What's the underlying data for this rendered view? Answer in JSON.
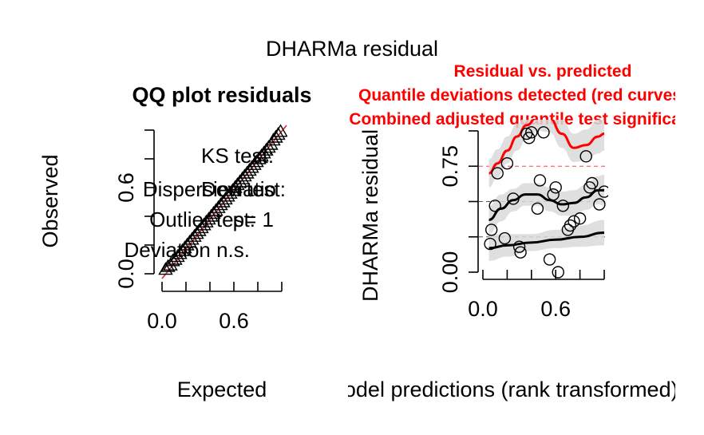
{
  "page_title": "DHARMa residual",
  "chart_data": [
    {
      "type": "scatter",
      "title": "QQ plot residuals",
      "xlabel": "Expected",
      "ylabel": "Observed",
      "xlim": [
        0,
        1
      ],
      "ylim": [
        0,
        1
      ],
      "x_ticks": [
        {
          "value": 0.0,
          "label": "0.0"
        },
        {
          "value": 0.6,
          "label": "0.6"
        }
      ],
      "x_minor_ticks": [
        0.0,
        0.2,
        0.4,
        0.6,
        0.8,
        1.0
      ],
      "y_ticks": [
        {
          "value": 0.0,
          "label": "0.0"
        },
        {
          "value": 0.6,
          "label": "0.6"
        }
      ],
      "y_minor_ticks": [
        0.0,
        0.2,
        0.4,
        0.6,
        0.8,
        1.0
      ],
      "reference_line": {
        "from": [
          0,
          0
        ],
        "to": [
          1,
          1
        ],
        "color": "#d62839"
      },
      "marker": "triangle",
      "points": [
        [
          0.03,
          0.03
        ],
        [
          0.05,
          0.05
        ],
        [
          0.07,
          0.06
        ],
        [
          0.09,
          0.09
        ],
        [
          0.11,
          0.1
        ],
        [
          0.13,
          0.12
        ],
        [
          0.15,
          0.14
        ],
        [
          0.17,
          0.16
        ],
        [
          0.19,
          0.18
        ],
        [
          0.21,
          0.2
        ],
        [
          0.23,
          0.22
        ],
        [
          0.25,
          0.24
        ],
        [
          0.27,
          0.26
        ],
        [
          0.29,
          0.28
        ],
        [
          0.31,
          0.3
        ],
        [
          0.33,
          0.32
        ],
        [
          0.35,
          0.34
        ],
        [
          0.37,
          0.36
        ],
        [
          0.39,
          0.38
        ],
        [
          0.41,
          0.4
        ],
        [
          0.43,
          0.42
        ],
        [
          0.45,
          0.44
        ],
        [
          0.47,
          0.46
        ],
        [
          0.49,
          0.48
        ],
        [
          0.51,
          0.5
        ],
        [
          0.53,
          0.52
        ],
        [
          0.55,
          0.54
        ],
        [
          0.57,
          0.56
        ],
        [
          0.59,
          0.58
        ],
        [
          0.61,
          0.6
        ],
        [
          0.63,
          0.62
        ],
        [
          0.65,
          0.64
        ],
        [
          0.67,
          0.66
        ],
        [
          0.69,
          0.68
        ],
        [
          0.71,
          0.7
        ],
        [
          0.73,
          0.72
        ],
        [
          0.75,
          0.74
        ],
        [
          0.77,
          0.76
        ],
        [
          0.79,
          0.78
        ],
        [
          0.81,
          0.8
        ],
        [
          0.83,
          0.82
        ],
        [
          0.85,
          0.84
        ],
        [
          0.87,
          0.86
        ],
        [
          0.89,
          0.88
        ],
        [
          0.91,
          0.9
        ],
        [
          0.93,
          0.93
        ],
        [
          0.95,
          0.95
        ],
        [
          0.97,
          0.97
        ],
        [
          0.99,
          0.99
        ]
      ],
      "annotations": [
        {
          "text": "KS test:",
          "color": "#000000"
        },
        {
          "text": "Deviatio",
          "color": "#000000"
        },
        {
          "text": "Dispersion test:",
          "color": "#000000"
        },
        {
          "text": "Outlier test:",
          "color": "#000000"
        },
        {
          "text": "p= 1",
          "color": "#000000"
        },
        {
          "text": "Deviation n.s.",
          "color": "#000000"
        }
      ]
    },
    {
      "type": "scatter",
      "title": "Residual vs. predicted",
      "subtitles": [
        "Quantile deviations detected (red curves)",
        "Combined adjusted quantile test significant"
      ],
      "title_color": "#ff0000",
      "xlabel": "Model predictions (rank transformed)",
      "ylabel": "DHARMa residual",
      "xlim": [
        0,
        1
      ],
      "ylim": [
        0,
        1
      ],
      "x_ticks": [
        {
          "value": 0.0,
          "label": "0.0"
        },
        {
          "value": 0.6,
          "label": "0.6"
        }
      ],
      "x_minor_ticks": [
        0.0,
        0.2,
        0.4,
        0.6,
        0.8,
        1.0
      ],
      "y_ticks": [
        {
          "value": 0.0,
          "label": "0.00"
        },
        {
          "value": 0.75,
          "label": "0.75"
        }
      ],
      "y_minor_ticks": [
        0.0,
        0.25,
        0.5,
        0.75,
        1.0
      ],
      "reference_lines": [
        {
          "y": 0.25,
          "color": "#555555"
        },
        {
          "y": 0.5,
          "color": "#555555"
        },
        {
          "y": 0.75,
          "color": "#ff4444"
        }
      ],
      "marker": "circle",
      "points": [
        [
          0.06,
          0.2
        ],
        [
          0.07,
          0.3
        ],
        [
          0.1,
          0.47
        ],
        [
          0.12,
          0.7
        ],
        [
          0.18,
          0.24
        ],
        [
          0.2,
          0.77
        ],
        [
          0.25,
          0.52
        ],
        [
          0.3,
          0.18
        ],
        [
          0.31,
          0.14
        ],
        [
          0.36,
          0.98
        ],
        [
          0.38,
          0.95
        ],
        [
          0.4,
          0.99
        ],
        [
          0.45,
          0.45
        ],
        [
          0.47,
          0.65
        ],
        [
          0.5,
          0.99
        ],
        [
          0.55,
          0.09
        ],
        [
          0.58,
          0.55
        ],
        [
          0.6,
          0.6
        ],
        [
          0.62,
          0.0
        ],
        [
          0.66,
          0.47
        ],
        [
          0.7,
          0.3
        ],
        [
          0.72,
          0.33
        ],
        [
          0.75,
          0.36
        ],
        [
          0.8,
          0.38
        ],
        [
          0.85,
          0.82
        ],
        [
          0.88,
          0.6
        ],
        [
          0.9,
          0.63
        ],
        [
          0.96,
          0.48
        ],
        [
          1.0,
          0.57
        ]
      ],
      "quantile_curves": [
        {
          "quantile": 0.25,
          "color": "#000000",
          "x": [
            0.05,
            0.2,
            0.4,
            0.6,
            0.8,
            1.0
          ],
          "y": [
            0.17,
            0.19,
            0.21,
            0.23,
            0.25,
            0.28
          ],
          "band_low": [
            0.08,
            0.11,
            0.15,
            0.17,
            0.18,
            0.19
          ],
          "band_high": [
            0.27,
            0.27,
            0.27,
            0.3,
            0.33,
            0.37
          ]
        },
        {
          "quantile": 0.5,
          "color": "#000000",
          "x": [
            0.05,
            0.15,
            0.25,
            0.35,
            0.45,
            0.55,
            0.65,
            0.75,
            0.85,
            0.95,
            1.0
          ],
          "y": [
            0.37,
            0.45,
            0.51,
            0.55,
            0.55,
            0.51,
            0.48,
            0.49,
            0.53,
            0.58,
            0.58
          ],
          "band_low": [
            0.27,
            0.36,
            0.43,
            0.47,
            0.47,
            0.43,
            0.4,
            0.4,
            0.44,
            0.48,
            0.47
          ],
          "band_high": [
            0.47,
            0.55,
            0.59,
            0.63,
            0.63,
            0.6,
            0.57,
            0.58,
            0.62,
            0.68,
            0.69
          ]
        },
        {
          "quantile": 0.75,
          "color": "#ff0000",
          "x": [
            0.05,
            0.12,
            0.2,
            0.28,
            0.36,
            0.45,
            0.55,
            0.65,
            0.75,
            0.85,
            0.95,
            1.0
          ],
          "y": [
            0.7,
            0.77,
            0.86,
            0.96,
            1.04,
            1.1,
            1.09,
            0.98,
            0.88,
            0.9,
            0.96,
            0.98
          ],
          "band_low": [
            0.6,
            0.67,
            0.77,
            0.86,
            0.94,
            1.0,
            0.99,
            0.88,
            0.78,
            0.79,
            0.84,
            0.86
          ],
          "band_high": [
            0.8,
            0.87,
            0.96,
            1.05,
            1.12,
            1.18,
            1.18,
            1.08,
            0.98,
            1.01,
            1.08,
            1.1
          ]
        }
      ]
    }
  ]
}
